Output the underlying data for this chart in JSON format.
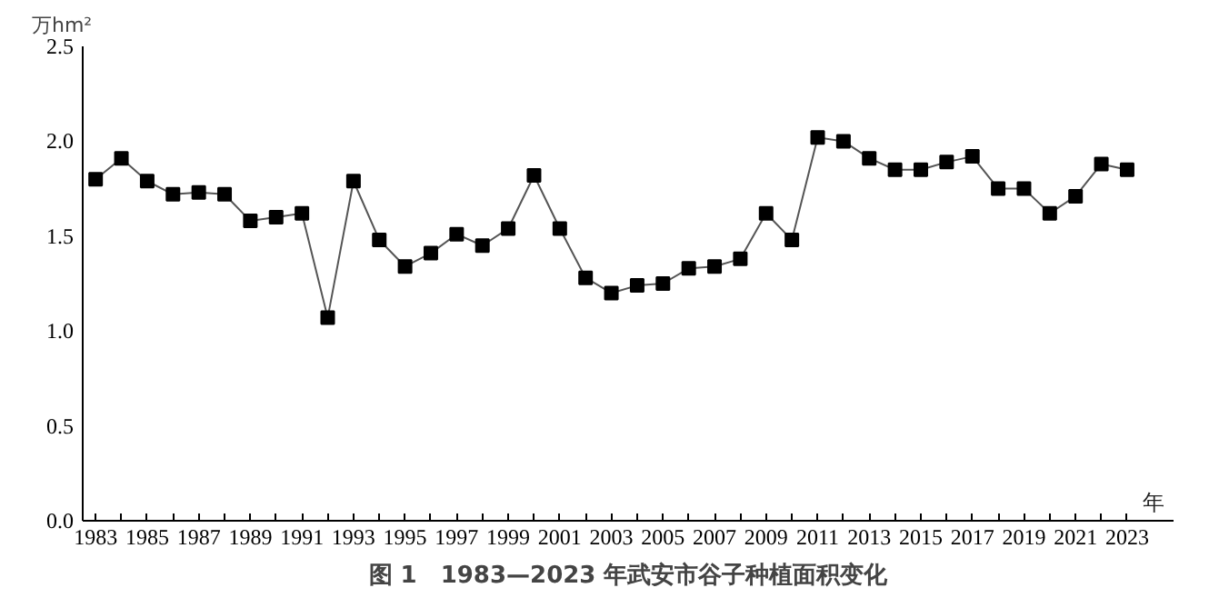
{
  "chart_data": {
    "type": "line",
    "title": "图 1　1983—2023 年武安市谷子种植面积变化",
    "ylabel": "万hm²",
    "xlabel": "年",
    "categories": [
      "1983",
      null,
      "1985",
      null,
      "1987",
      null,
      "1989",
      null,
      "1991",
      null,
      "1993",
      null,
      "1995",
      null,
      "1997",
      null,
      "1999",
      null,
      "2001",
      null,
      "2003",
      null,
      "2005",
      null,
      "2007",
      null,
      "2009",
      null,
      "2011",
      null,
      "2013",
      null,
      "2015",
      null,
      "2017",
      null,
      "2019",
      null,
      "2021",
      null,
      "2023"
    ],
    "series": [
      {
        "color": "#000000",
        "values": [
          1.8,
          1.91,
          1.79,
          1.72,
          1.73,
          1.72,
          1.58,
          1.6,
          1.62,
          1.07,
          1.79,
          1.48,
          1.34,
          1.41,
          1.51,
          1.45,
          1.54,
          1.82,
          1.54,
          1.28,
          1.2,
          1.24,
          1.25,
          1.33,
          1.34,
          1.38,
          1.62,
          1.48,
          2.02,
          2.0,
          1.91,
          1.85,
          1.85,
          1.89,
          1.92,
          1.75,
          1.75,
          1.62,
          1.71,
          1.88,
          1.85
        ]
      }
    ],
    "ylim": [
      0,
      2.5
    ],
    "yticks": [
      {
        "value": 0,
        "label": "0.0"
      },
      {
        "value": 0.5,
        "label": "0.5"
      },
      {
        "value": 1,
        "label": "1.0"
      },
      {
        "value": 1.5,
        "label": "1.5"
      },
      {
        "value": 2,
        "label": "2.0"
      },
      {
        "value": 2.5,
        "label": "2.5"
      }
    ],
    "grid": false,
    "marker": "square",
    "line_style": "solid"
  }
}
